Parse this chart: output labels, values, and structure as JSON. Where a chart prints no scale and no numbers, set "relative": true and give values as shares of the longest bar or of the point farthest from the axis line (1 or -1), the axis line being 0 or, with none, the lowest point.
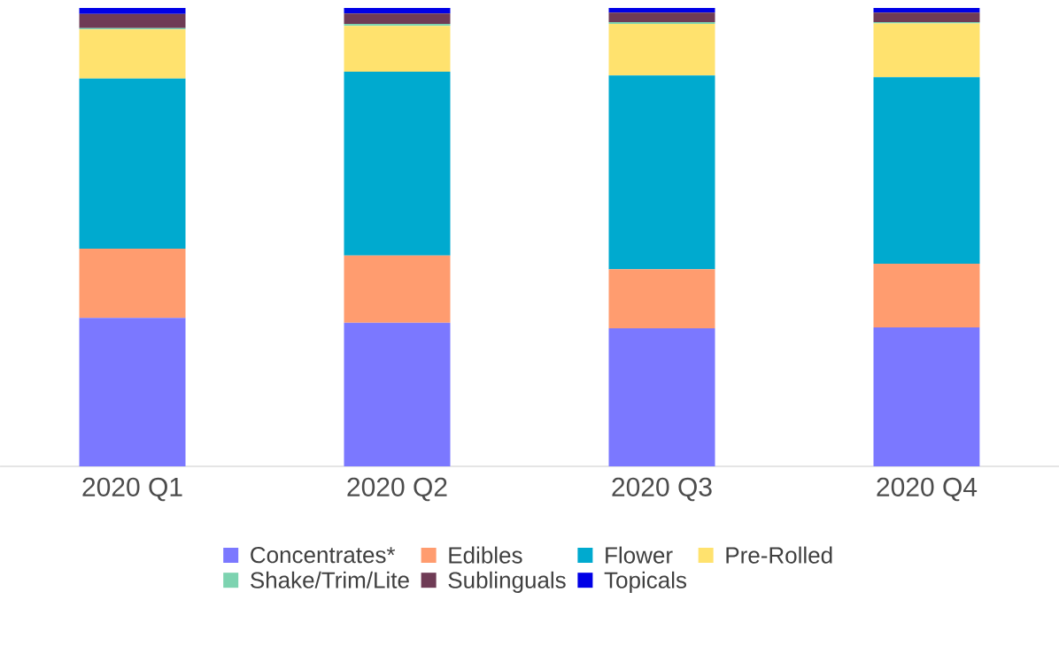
{
  "chart_data": {
    "type": "bar",
    "stacked": true,
    "relative": true,
    "legend": "bottom",
    "categories": [
      "2020 Q1",
      "2020 Q2",
      "2020 Q3",
      "2020 Q4"
    ],
    "series": [
      {
        "name": "Concentrates*",
        "color": "#7b78ff",
        "values": [
          0.324,
          0.313,
          0.301,
          0.303
        ]
      },
      {
        "name": "Edibles",
        "color": "#ff9c6f",
        "values": [
          0.151,
          0.147,
          0.129,
          0.139
        ]
      },
      {
        "name": "Flower",
        "color": "#00aacf",
        "values": [
          0.371,
          0.401,
          0.423,
          0.407
        ]
      },
      {
        "name": "Pre-Rolled",
        "color": "#ffe26e",
        "values": [
          0.107,
          0.1,
          0.112,
          0.117
        ]
      },
      {
        "name": "Shake/Trim/Lite",
        "color": "#7dd3b0",
        "values": [
          0.003,
          0.004,
          0.004,
          0.003
        ]
      },
      {
        "name": "Sublinguals",
        "color": "#6f3b55",
        "values": [
          0.031,
          0.023,
          0.021,
          0.021
        ]
      },
      {
        "name": "Topicals",
        "color": "#0000e6",
        "values": [
          0.013,
          0.012,
          0.01,
          0.01
        ]
      }
    ]
  }
}
